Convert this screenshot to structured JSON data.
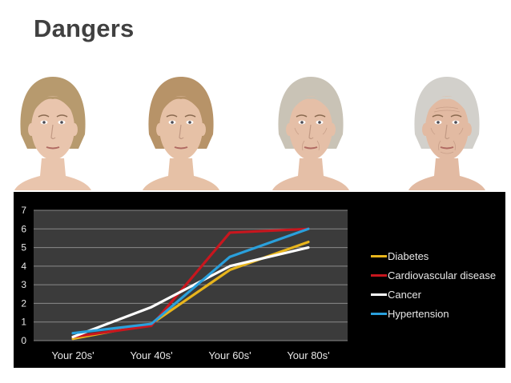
{
  "slide": {
    "title": "Dangers"
  },
  "portraits": [
    {
      "label": "face-20s",
      "hair": "#b79a6e",
      "skin": "#e9c5ad"
    },
    {
      "label": "face-40s",
      "hair": "#b79368",
      "skin": "#e6c1a6"
    },
    {
      "label": "face-60s",
      "hair": "#c9c3b6",
      "skin": "#e5bfa7"
    },
    {
      "label": "face-80s",
      "hair": "#d2d0cb",
      "skin": "#e2baa2"
    }
  ],
  "chart_data": {
    "type": "line",
    "categories": [
      "Your 20s'",
      "Your 40s'",
      "Your 60s'",
      "Your 80s'"
    ],
    "ylim": [
      0,
      7
    ],
    "yticks": [
      "0",
      "1",
      "2",
      "3",
      "4",
      "5",
      "6",
      "7"
    ],
    "grid": true,
    "legend_position": "right",
    "series": [
      {
        "name": "Diabetes",
        "color": "#e8b51c",
        "values": [
          0.1,
          0.9,
          3.8,
          5.3
        ]
      },
      {
        "name": "Cardiovascular disease",
        "color": "#c8161e",
        "values": [
          0.2,
          0.8,
          5.8,
          6.0
        ]
      },
      {
        "name": "Cancer",
        "color": "#ffffff",
        "values": [
          0.2,
          1.8,
          4.0,
          5.0
        ]
      },
      {
        "name": "Hypertension",
        "color": "#2aa0dc",
        "values": [
          0.4,
          0.9,
          4.5,
          6.0
        ]
      }
    ]
  }
}
